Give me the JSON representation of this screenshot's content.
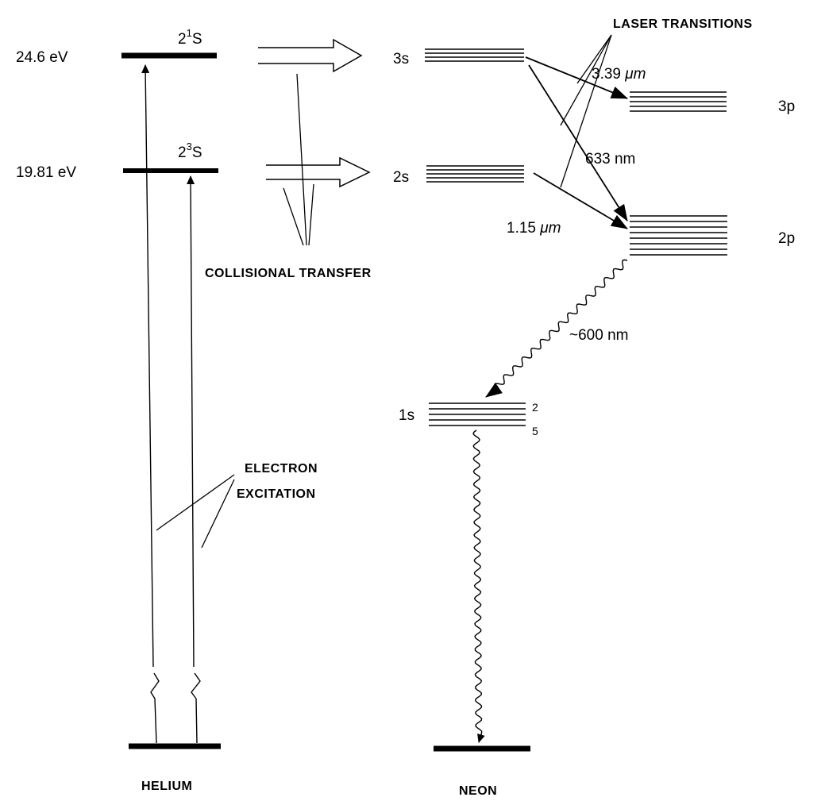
{
  "helium": {
    "name": "HELIUM",
    "level_upper": {
      "energy": "24.6 eV",
      "term_prefix": "2",
      "term_sup": "1",
      "term_letter": "S"
    },
    "level_lower": {
      "energy": "19.81 eV",
      "term_prefix": "2",
      "term_sup": "3",
      "term_letter": "S"
    }
  },
  "neon": {
    "name": "NEON",
    "levels": {
      "s3": "3s",
      "s2": "2s",
      "p3": "3p",
      "p2": "2p",
      "s1": "1s",
      "s1_top_index": "2",
      "s1_bottom_index": "5"
    }
  },
  "annotations": {
    "laser_transitions": "LASER TRANSITIONS",
    "collisional_transfer": "COLLISIONAL TRANSFER",
    "electron_excitation_line1": "ELECTRON",
    "electron_excitation_line2": "EXCITATION"
  },
  "transitions": {
    "t1_value": "3.39",
    "t1_unit": "μm",
    "t2": "633 nm",
    "t3_value": "1.15",
    "t3_unit": "μm",
    "spontaneous": "~600 nm"
  }
}
